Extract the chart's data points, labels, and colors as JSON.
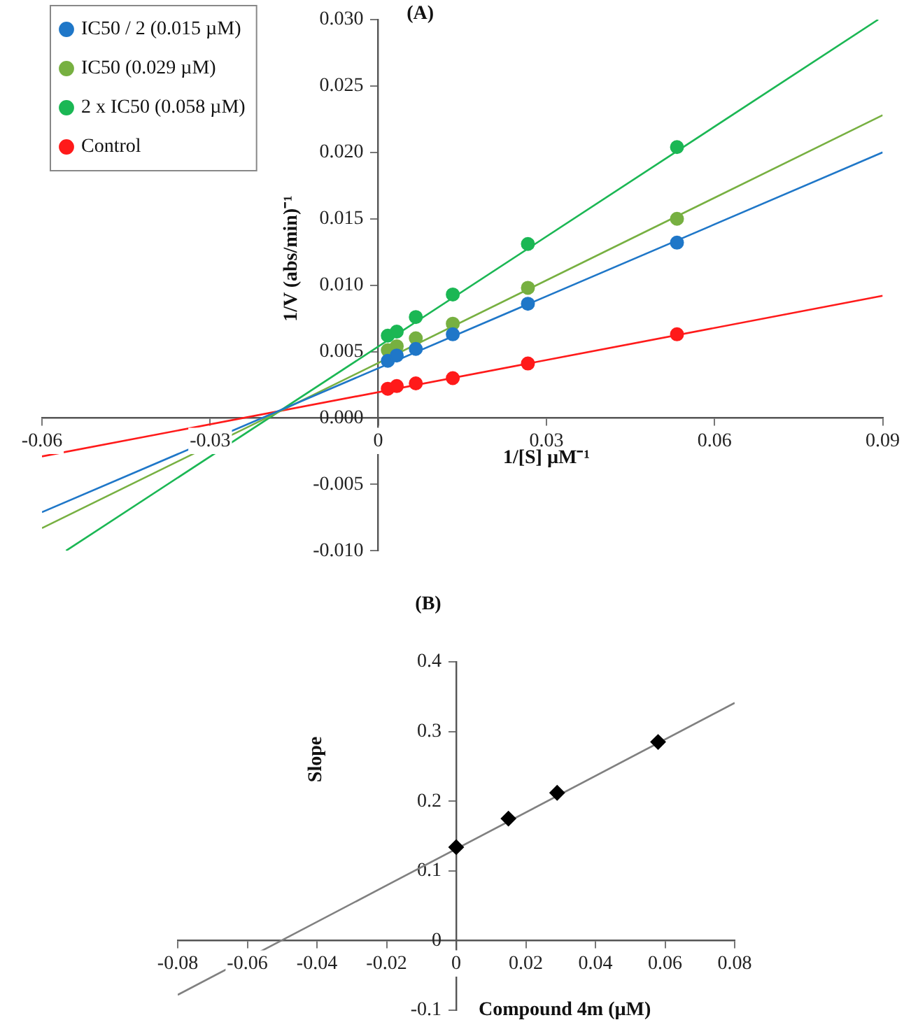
{
  "chart_data": [
    {
      "type": "scatter",
      "title": "(A)",
      "xlabel": "1/[S] µM⁻¹",
      "ylabel": "1/V (abs/min)⁻¹",
      "x": [
        0.0017,
        0.0033,
        0.0067,
        0.0133,
        0.0267,
        0.0533
      ],
      "series": [
        {
          "name": "IC50 / 2 (0.015 µM)",
          "color": "#1f77c8",
          "values": [
            0.0043,
            0.0047,
            0.0052,
            0.0063,
            0.0086,
            0.0132
          ]
        },
        {
          "name": "IC50 (0.029 µM)",
          "color": "#77b041",
          "values": [
            0.0051,
            0.0054,
            0.006,
            0.0071,
            0.0098,
            0.015
          ]
        },
        {
          "name": "2 x IC50 (0.058 µM)",
          "color": "#1bb754",
          "values": [
            0.0062,
            0.0065,
            0.0076,
            0.0093,
            0.0131,
            0.0204
          ]
        },
        {
          "name": "Control",
          "color": "#ff1a1a",
          "values": [
            0.0022,
            0.0024,
            0.0026,
            0.003,
            0.0041,
            0.0063
          ]
        },
        {
          "type": "line",
          "marker": "none",
          "color": "#1f77c8",
          "x": [
            -0.06,
            0.09
          ],
          "values": [
            -0.0071,
            0.02
          ]
        },
        {
          "type": "line",
          "marker": "none",
          "color": "#77b041",
          "x": [
            -0.06,
            0.09
          ],
          "values": [
            -0.0083,
            0.0228
          ]
        },
        {
          "type": "line",
          "marker": "none",
          "color": "#1bb754",
          "x": [
            -0.0557,
            0.0892
          ],
          "values": [
            -0.01,
            0.03
          ]
        },
        {
          "type": "line",
          "marker": "none",
          "color": "#ff1a1a",
          "x": [
            -0.06,
            0.09
          ],
          "values": [
            -0.0029,
            0.0092
          ]
        }
      ],
      "xlim": [
        -0.06,
        0.09
      ],
      "xticks": [
        -0.06,
        -0.03,
        0,
        0.03,
        0.06,
        0.09
      ],
      "ylim": [
        -0.01,
        0.03
      ],
      "yticks": [
        {
          "value": -0.01,
          "label": "-0.010"
        },
        {
          "value": -0.005,
          "label": "-0.005"
        },
        {
          "value": 0,
          "label": "0.000"
        },
        {
          "value": 0.005,
          "label": "0.005"
        },
        {
          "value": 0.01,
          "label": "0.010"
        },
        {
          "value": 0.015,
          "label": "0.015"
        },
        {
          "value": 0.02,
          "label": "0.020"
        },
        {
          "value": 0.025,
          "label": "0.025"
        },
        {
          "value": 0.03,
          "label": "0.030"
        }
      ],
      "grid": false,
      "legend": "top left",
      "marker": "circle"
    },
    {
      "type": "scatter",
      "title": "(B)",
      "xlabel": "Compound 4m (µM)",
      "ylabel": "Slope",
      "x": [
        0,
        0.015,
        0.029,
        0.058
      ],
      "series": [
        {
          "color": "#000000",
          "values": [
            0.134,
            0.175,
            0.212,
            0.285
          ]
        },
        {
          "type": "line",
          "marker": "none",
          "color": "#808080",
          "x": [
            -0.08,
            0.08
          ],
          "values": [
            -0.078,
            0.341
          ]
        }
      ],
      "xlim": [
        -0.08,
        0.08
      ],
      "xticks": [
        -0.08,
        -0.06,
        -0.04,
        -0.02,
        0,
        0.02,
        0.04,
        0.06,
        0.08
      ],
      "ylim": [
        -0.1,
        0.4
      ],
      "yticks": [
        -0.1,
        0,
        0.1,
        0.2,
        0.3,
        0.4
      ],
      "grid": false,
      "legend": false,
      "marker": "diamond"
    }
  ]
}
